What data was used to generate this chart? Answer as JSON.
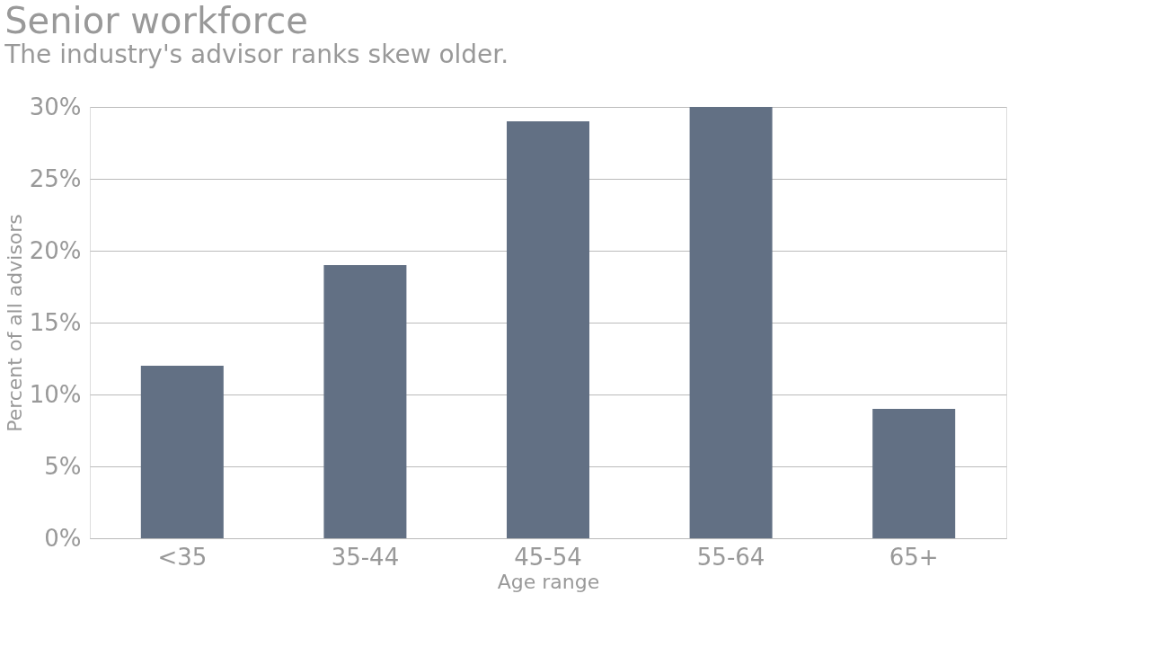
{
  "chart_data": {
    "type": "bar",
    "title": "Senior workforce",
    "subtitle": "The industry's advisor ranks skew older.",
    "xlabel": "Age range",
    "ylabel": "Percent of all advisors",
    "categories": [
      "<35",
      "35-44",
      "45-54",
      "55-64",
      "65+"
    ],
    "values": [
      12,
      19,
      29,
      30,
      9
    ],
    "color": "#627084",
    "ylim": [
      0,
      30
    ],
    "yticks": [
      {
        "value": 0,
        "label": "0%"
      },
      {
        "value": 5,
        "label": "5%"
      },
      {
        "value": 10,
        "label": "10%"
      },
      {
        "value": 15,
        "label": "15%"
      },
      {
        "value": 20,
        "label": "20%"
      },
      {
        "value": 25,
        "label": "25%"
      },
      {
        "value": 30,
        "label": "30%"
      }
    ],
    "grid": "y"
  }
}
